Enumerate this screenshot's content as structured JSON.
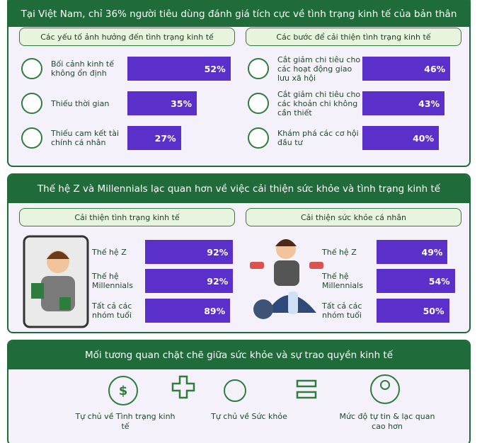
{
  "section1": {
    "title": "Tại Việt Nam, chỉ 36% người tiêu dùng đánh giá tích cực về tình trạng kinh tế của bản thân",
    "panels": [
      {
        "heading": "Các yếu tố ảnh hưởng đến tình trạng kinh tế",
        "labels": [
          "Bối cảnh kinh tế không ổn định",
          "Thiếu thời gian",
          "Thiếu cam kết tài chính cá nhân"
        ],
        "values": [
          52,
          35,
          27
        ],
        "value_labels": [
          "52%",
          "35%",
          "27%"
        ]
      },
      {
        "heading": "Các bước để cải thiện tình trạng kinh tế",
        "labels": [
          "Cắt giảm chi tiêu cho các hoạt động giao lưu xã hội",
          "Cắt giảm chi tiêu cho các khoản chi không cần thiết",
          "Khám phá các cơ hội đầu tư"
        ],
        "values": [
          46,
          43,
          40
        ],
        "value_labels": [
          "46%",
          "43%",
          "40%"
        ]
      }
    ]
  },
  "section2": {
    "title": "Thế hệ Z và Millennials lạc quan hơn về việc cải thiện sức khỏe và tình trạng kinh tế",
    "panels": [
      {
        "heading": "Cải thiện tình trạng kinh tế",
        "labels": [
          "Thế hệ Z",
          "Thế hệ Millennials",
          "Tất cả các nhóm tuổi"
        ],
        "values": [
          92,
          92,
          89
        ],
        "value_labels": [
          "92%",
          "92%",
          "89%"
        ]
      },
      {
        "heading": "Cải thiện sức khỏe cá nhân",
        "labels": [
          "Thế hệ Z",
          "Thế hệ Millennials",
          "Tất cả các nhóm tuổi"
        ],
        "values": [
          49,
          54,
          50
        ],
        "value_labels": [
          "49%",
          "54%",
          "50%"
        ]
      }
    ]
  },
  "section3": {
    "title": "Mối tương quan chặt chẽ giữa sức khỏe và sự trao quyền kinh tế",
    "items": [
      "Tự chủ về Tình trạng kinh tế",
      "Tự chủ về Sức khỏe",
      "Mức độ tự tin & lạc quan cao hơn"
    ]
  }
}
